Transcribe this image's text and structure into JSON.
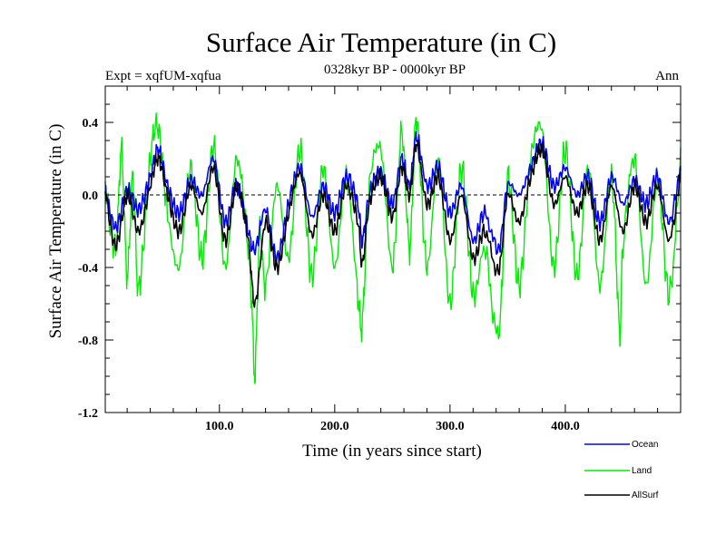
{
  "chart_data": {
    "type": "line",
    "title": "Surface Air Temperature (in C)",
    "subtitle": "0328kyr BP - 0000kyr BP",
    "expt_label": "Expt = xqfUM-xqfua",
    "season_label": "Ann",
    "xlabel": "Time (in years since start)",
    "ylabel": "Surface Air Temperature (in C)",
    "xlim": [
      1,
      500
    ],
    "ylim": [
      -1.2,
      0.6
    ],
    "x_ticks": [
      100,
      200,
      300,
      400
    ],
    "x_tick_labels": [
      "100.0",
      "200.0",
      "300.0",
      "400.0"
    ],
    "y_ticks": [
      -1.2,
      -0.8,
      -0.4,
      0.0,
      0.4
    ],
    "y_tick_labels": [
      "-1.2",
      "-0.8",
      "-0.4",
      "0.0",
      "0.4"
    ],
    "reference_line_y": 0.0,
    "grid": false,
    "legend_position": "bottom-right",
    "series": [
      {
        "name": "Ocean",
        "color": "#0000ff",
        "x": [
          1,
          10,
          20,
          30,
          40,
          47,
          55,
          65,
          75,
          85,
          95,
          105,
          115,
          125,
          131,
          140,
          150,
          160,
          170,
          180,
          190,
          200,
          210,
          220,
          224,
          230,
          240,
          250,
          258,
          265,
          271,
          280,
          290,
          300,
          310,
          320,
          330,
          342,
          350,
          360,
          370,
          380,
          390,
          400,
          410,
          420,
          430,
          440,
          450,
          460,
          470,
          480,
          490,
          500
        ],
        "values": [
          0.04,
          -0.18,
          0.02,
          -0.08,
          0.1,
          0.25,
          0.05,
          -0.1,
          0.08,
          0.0,
          0.2,
          -0.15,
          0.05,
          -0.2,
          -0.3,
          -0.08,
          -0.35,
          -0.05,
          0.15,
          -0.12,
          0.05,
          -0.1,
          0.1,
          -0.05,
          -0.25,
          0.0,
          0.12,
          -0.05,
          0.2,
          0.05,
          0.32,
          0.05,
          0.15,
          -0.1,
          0.05,
          -0.25,
          -0.1,
          -0.3,
          0.05,
          0.0,
          0.15,
          0.28,
          0.05,
          0.15,
          0.0,
          0.1,
          -0.15,
          0.1,
          -0.05,
          0.08,
          -0.05,
          0.1,
          -0.15,
          0.16
        ]
      },
      {
        "name": "Land",
        "color": "#00ee00",
        "x": [
          1,
          10,
          15,
          20,
          25,
          30,
          40,
          47,
          55,
          65,
          75,
          85,
          95,
          105,
          115,
          125,
          128,
          131,
          135,
          140,
          150,
          160,
          170,
          180,
          190,
          200,
          210,
          220,
          224,
          230,
          240,
          250,
          258,
          265,
          271,
          280,
          290,
          300,
          310,
          320,
          330,
          342,
          350,
          360,
          370,
          380,
          390,
          400,
          410,
          420,
          430,
          440,
          447,
          450,
          460,
          470,
          480,
          490,
          500
        ],
        "values": [
          0.05,
          -0.3,
          0.25,
          -0.45,
          0.1,
          -0.52,
          0.2,
          0.37,
          -0.1,
          -0.4,
          0.15,
          -0.35,
          0.27,
          -0.4,
          0.2,
          -0.3,
          -0.6,
          -0.98,
          -0.2,
          -0.5,
          0.05,
          -0.35,
          0.25,
          -0.45,
          0.15,
          -0.4,
          0.1,
          -0.55,
          -0.7,
          0.05,
          0.25,
          -0.4,
          0.35,
          -0.3,
          0.42,
          -0.4,
          0.2,
          -0.6,
          0.15,
          -0.55,
          -0.3,
          -0.77,
          0.1,
          -0.5,
          0.2,
          0.35,
          -0.4,
          0.25,
          -0.45,
          0.15,
          -0.5,
          0.1,
          -0.75,
          -0.3,
          0.2,
          -0.5,
          0.1,
          -0.55,
          0.2
        ]
      },
      {
        "name": "AllSurf",
        "color": "#000000",
        "x": [
          1,
          10,
          20,
          30,
          40,
          47,
          55,
          65,
          75,
          85,
          95,
          105,
          115,
          125,
          131,
          140,
          150,
          160,
          170,
          180,
          190,
          200,
          210,
          220,
          224,
          230,
          240,
          250,
          258,
          265,
          271,
          280,
          290,
          300,
          310,
          320,
          330,
          342,
          350,
          360,
          370,
          380,
          390,
          400,
          410,
          420,
          430,
          440,
          450,
          460,
          470,
          480,
          490,
          500
        ],
        "values": [
          0.03,
          -0.28,
          0.0,
          -0.2,
          0.05,
          0.2,
          0.0,
          -0.2,
          0.05,
          -0.1,
          0.15,
          -0.25,
          0.05,
          -0.25,
          -0.6,
          -0.15,
          -0.4,
          -0.1,
          0.12,
          -0.22,
          0.0,
          -0.2,
          0.05,
          -0.15,
          -0.38,
          -0.05,
          0.1,
          -0.12,
          0.15,
          0.0,
          0.28,
          -0.05,
          0.1,
          -0.25,
          0.0,
          -0.35,
          -0.2,
          -0.42,
          0.0,
          -0.15,
          0.1,
          0.25,
          -0.05,
          0.1,
          -0.1,
          0.05,
          -0.25,
          0.05,
          -0.2,
          0.05,
          -0.15,
          0.05,
          -0.25,
          0.12
        ]
      }
    ]
  }
}
